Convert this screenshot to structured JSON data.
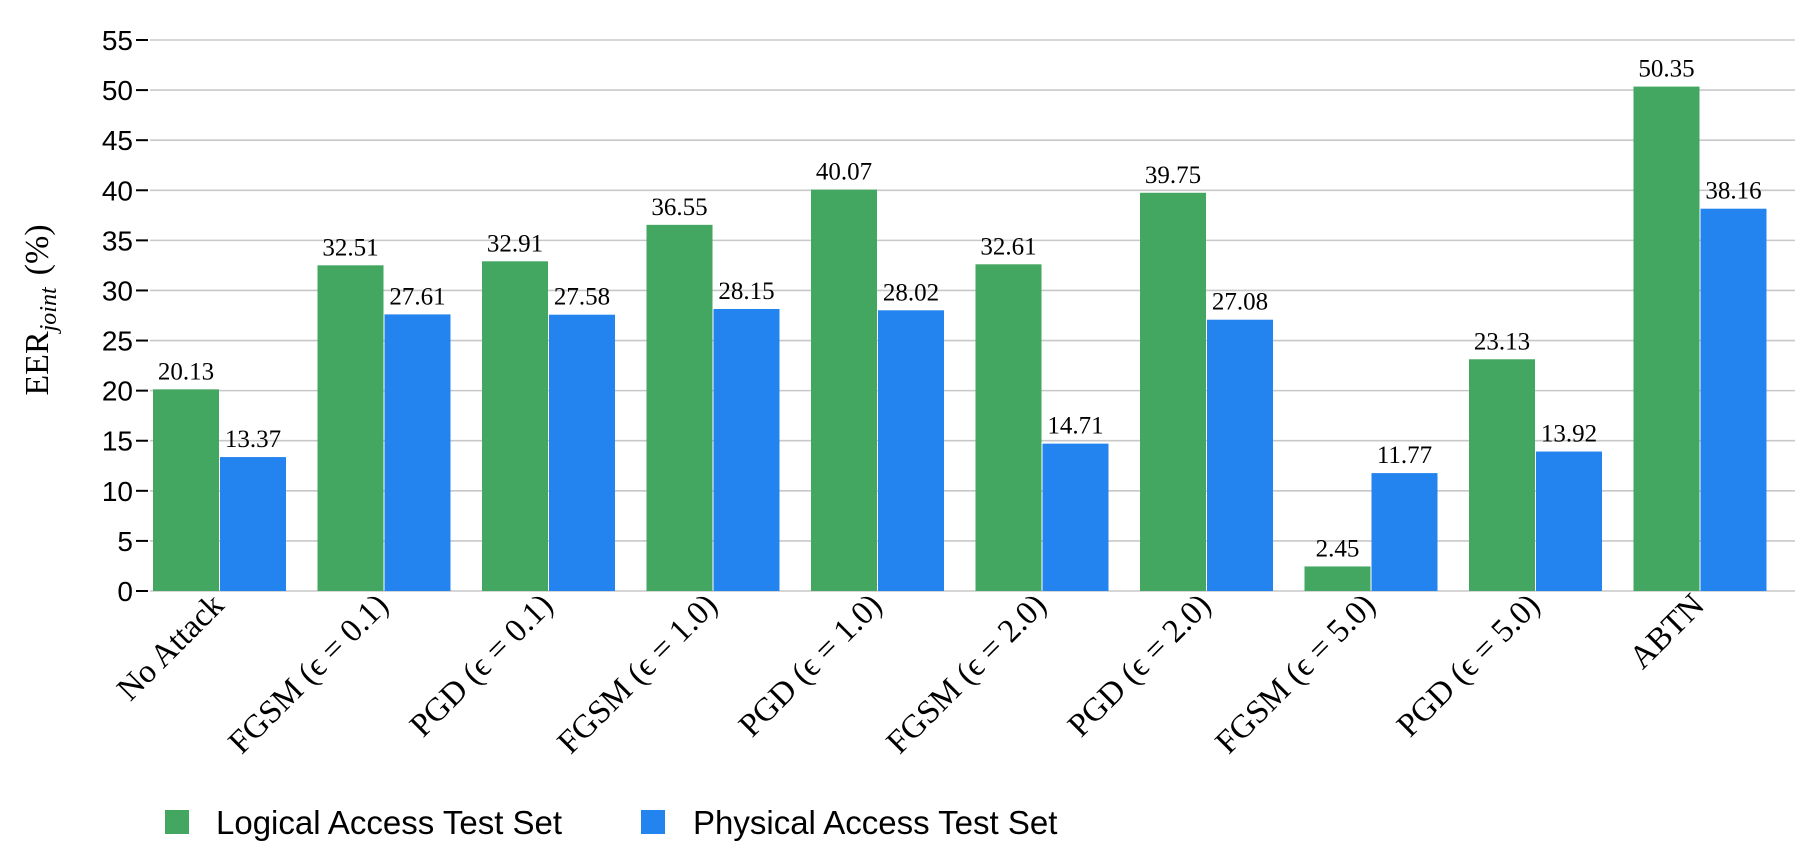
{
  "chart_data": {
    "type": "bar",
    "title": "",
    "xlabel": "",
    "ylabel": "EER",
    "ylabel_subscript": "joint",
    "ylabel_unit": "(%)",
    "ylim": [
      0,
      55
    ],
    "yticks": [
      0,
      5,
      10,
      15,
      20,
      25,
      30,
      35,
      40,
      45,
      50,
      55
    ],
    "grid": true,
    "legend_position": "bottom-left",
    "categories": [
      "No Attack",
      "FGSM (ϵ = 0.1)",
      "PGD (ϵ = 0.1)",
      "FGSM (ϵ = 1.0)",
      "PGD (ϵ = 1.0)",
      "FGSM (ϵ = 2.0)",
      "PGD (ϵ = 2.0)",
      "FGSM (ϵ = 5.0)",
      "PGD (ϵ = 5.0)",
      "ABTN"
    ],
    "series": [
      {
        "name": "Logical Access Test Set",
        "color": "#43a661",
        "values": [
          20.13,
          32.51,
          32.91,
          36.55,
          40.07,
          32.61,
          39.75,
          2.45,
          23.13,
          50.35
        ],
        "labels": [
          "20.13",
          "32.51",
          "32.91",
          "36.55",
          "40.07",
          "32.61",
          "39.75",
          "2.45",
          "23.13",
          "50.35"
        ]
      },
      {
        "name": "Physical Access Test Set",
        "color": "#2484ef",
        "values": [
          13.37,
          27.61,
          27.58,
          28.15,
          28.02,
          14.71,
          27.08,
          11.77,
          13.92,
          38.16
        ],
        "labels": [
          "13.37",
          "27.61",
          "27.58",
          "28.15",
          "28.02",
          "14.71",
          "27.08",
          "11.77",
          "13.92",
          "38.16"
        ]
      }
    ]
  }
}
